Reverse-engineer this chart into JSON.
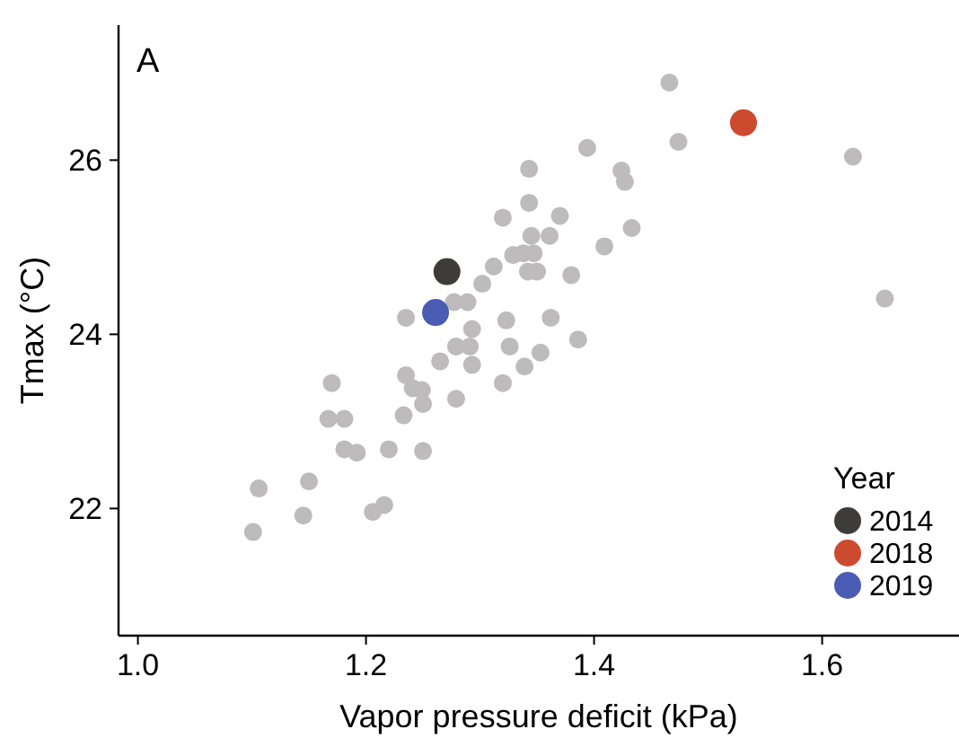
{
  "chart_data": {
    "type": "scatter",
    "title": "A",
    "xlabel": "Vapor pressure deficit (kPa)",
    "ylabel": "Tmax (°C)",
    "legend_title": "Year",
    "legend": "bottom right",
    "grid": false,
    "marker": "circle",
    "xlim": [
      0.983,
      1.72
    ],
    "ylim": [
      20.54,
      27.55
    ],
    "xticks": [
      {
        "value": 1.0,
        "label": "1.0"
      },
      {
        "value": 1.2,
        "label": "1.2"
      },
      {
        "value": 1.4,
        "label": "1.4"
      },
      {
        "value": 1.6,
        "label": "1.6"
      }
    ],
    "yticks": [
      22,
      24,
      26
    ],
    "series": [
      {
        "color": "#bdbbbb",
        "x": [
          1.235,
          1.17,
          1.235,
          1.241,
          1.249,
          1.25,
          1.167,
          1.181,
          1.233,
          1.181,
          1.192,
          1.22,
          1.25,
          1.106,
          1.15,
          1.145,
          1.216,
          1.206,
          1.101,
          1.265,
          1.279,
          1.279,
          1.277,
          1.289,
          1.394,
          1.474,
          1.343,
          1.424,
          1.427,
          1.343,
          1.32,
          1.37,
          1.433,
          1.345,
          1.361,
          1.409,
          1.329,
          1.338,
          1.347,
          1.312,
          1.342,
          1.35,
          1.38,
          1.302,
          1.323,
          1.362,
          1.293,
          1.291,
          1.326,
          1.386,
          1.293,
          1.353,
          1.339,
          1.32,
          1.466,
          1.627,
          1.655
        ],
        "values": [
          24.19,
          23.44,
          23.53,
          23.38,
          23.36,
          23.2,
          23.03,
          23.03,
          23.07,
          22.68,
          22.64,
          22.68,
          22.66,
          22.23,
          22.31,
          21.92,
          22.04,
          21.96,
          21.73,
          23.69,
          23.86,
          23.26,
          24.37,
          24.37,
          26.14,
          26.21,
          25.9,
          25.88,
          25.75,
          25.51,
          25.34,
          25.36,
          25.22,
          25.13,
          25.13,
          25.01,
          24.91,
          24.93,
          24.93,
          24.78,
          24.72,
          24.72,
          24.68,
          24.58,
          24.16,
          24.19,
          24.06,
          23.86,
          23.86,
          23.94,
          23.65,
          23.79,
          23.63,
          23.44,
          26.89,
          26.04,
          24.41
        ]
      },
      {
        "name": "2014",
        "color": "#3e3b3b",
        "x": [
          1.271
        ],
        "values": [
          24.72
        ]
      },
      {
        "name": "2018",
        "color": "#cc4a2e",
        "x": [
          1.531
        ],
        "values": [
          26.43
        ]
      },
      {
        "name": "2019",
        "color": "#4a5cb4",
        "x": [
          1.261
        ],
        "values": [
          24.25
        ]
      }
    ]
  }
}
